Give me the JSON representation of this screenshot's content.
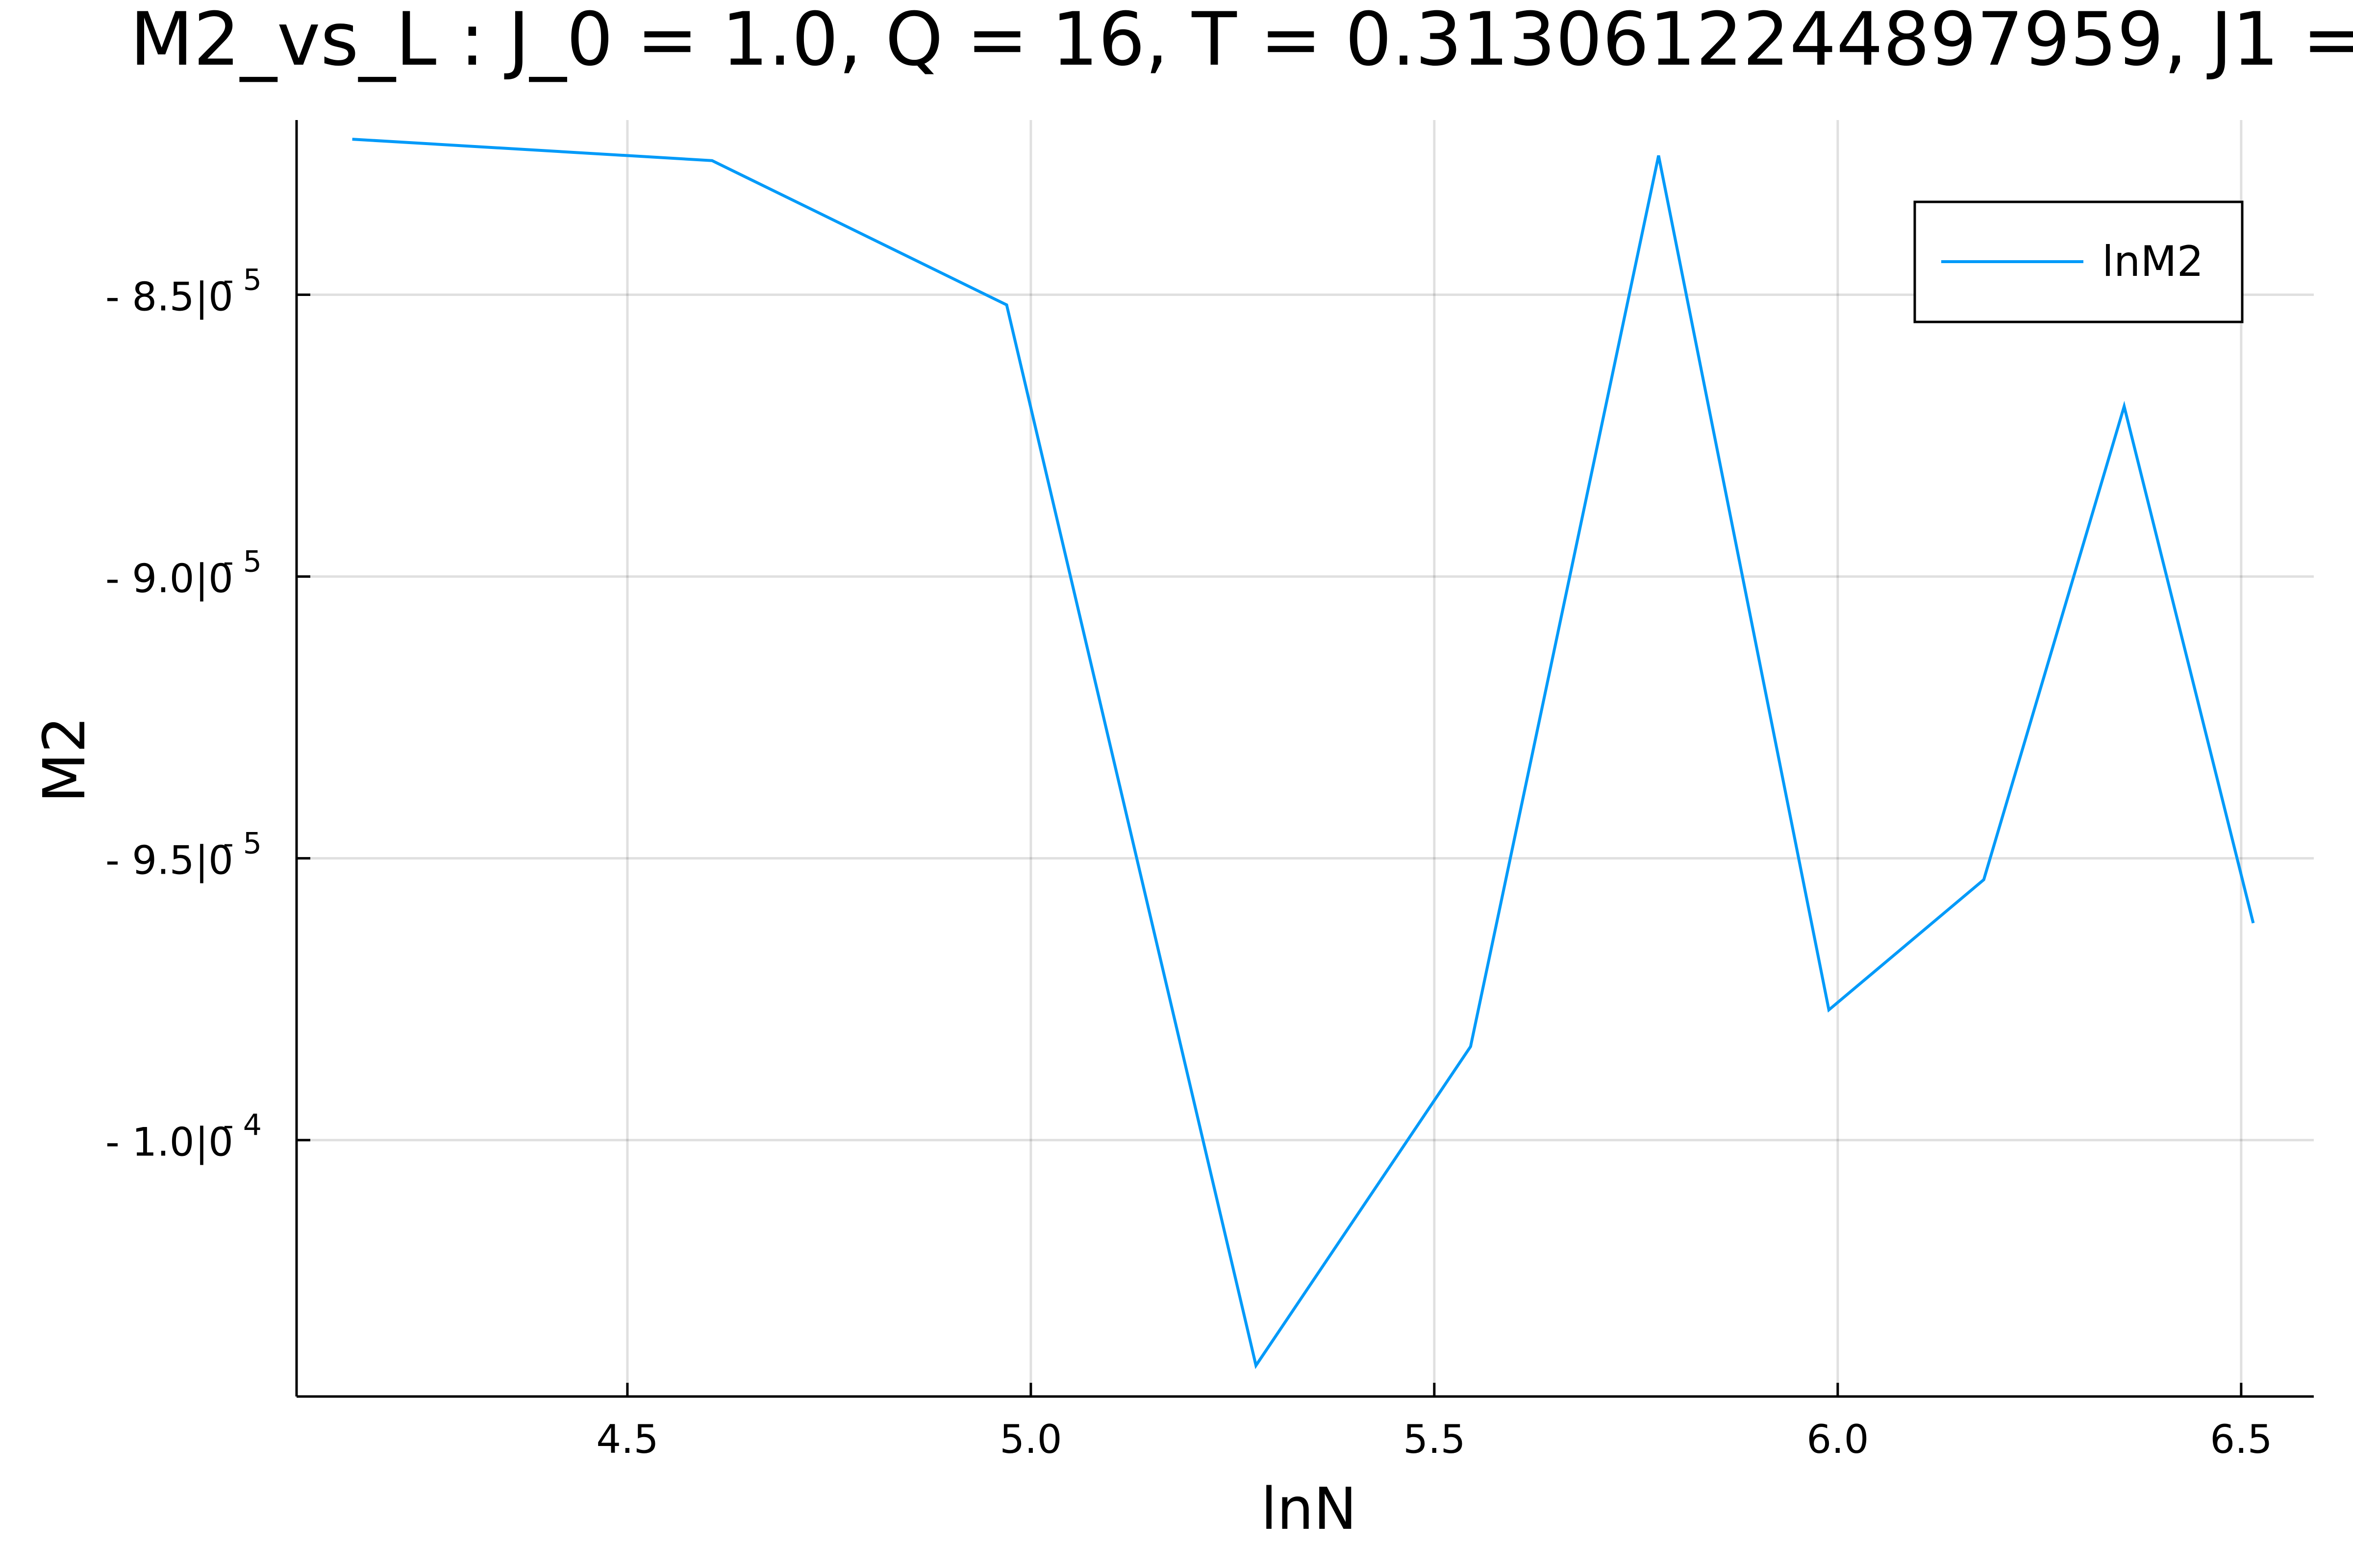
{
  "chart_data": {
    "type": "line",
    "title": "M2_vs_L : J_0 = 1.0, Q = 16, T = 0.3130612244897959, J1 =",
    "xlabel": "lnN",
    "ylabel": "M2",
    "xlim": [
      4.09,
      6.59
    ],
    "ylim": [
      -0.00010455,
      -8.19e-05
    ],
    "grid": true,
    "legend_position": "top-right",
    "x_ticks": [
      {
        "value": 4.5,
        "label": "4.5"
      },
      {
        "value": 5.0,
        "label": "5.0"
      },
      {
        "value": 5.5,
        "label": "5.5"
      },
      {
        "value": 6.0,
        "label": "6.0"
      },
      {
        "value": 6.5,
        "label": "6.5"
      }
    ],
    "y_ticks": [
      {
        "value": -8.5e-05,
        "mantissa": "- 8.5",
        "times": "|0",
        "exp": "- 5"
      },
      {
        "value": -9e-05,
        "mantissa": "- 9.0",
        "times": "|0",
        "exp": "- 5"
      },
      {
        "value": -9.5e-05,
        "mantissa": "- 9.5",
        "times": "|0",
        "exp": "- 5"
      },
      {
        "value": -0.0001,
        "mantissa": "- 1.0",
        "times": "|0",
        "exp": "- 4"
      }
    ],
    "series": [
      {
        "name": "lnM2",
        "color": "#009af9",
        "x": [
          4.159,
          4.605,
          4.97,
          5.279,
          5.545,
          5.778,
          5.989,
          6.181,
          6.355,
          6.515
        ],
        "y": [
          -8.224e-05,
          -8.262e-05,
          -8.518e-05,
          -0.000104,
          -9.834e-05,
          -8.253e-05,
          -9.769e-05,
          -9.538e-05,
          -8.698e-05,
          -9.615e-05
        ]
      }
    ]
  }
}
